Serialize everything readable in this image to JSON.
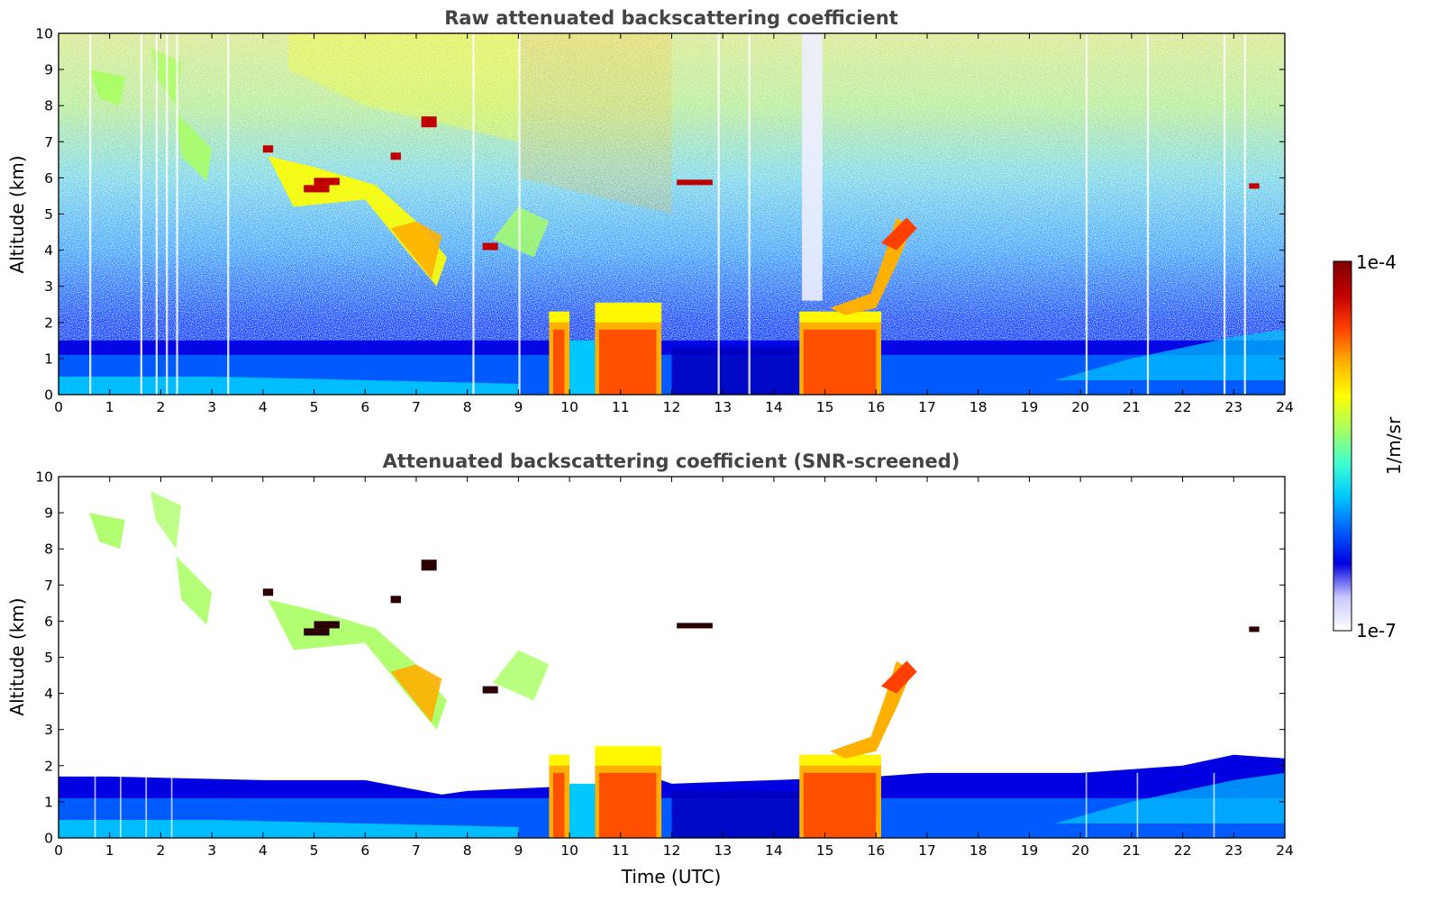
{
  "chart_data": [
    {
      "type": "heatmap",
      "title": "Raw attenuated backscattering coefficient",
      "xlabel": "",
      "ylabel": "Altitude (km)",
      "xlim": [
        0,
        24
      ],
      "ylim": [
        0,
        10
      ],
      "xticks": [
        "0",
        "1",
        "2",
        "3",
        "4",
        "5",
        "6",
        "7",
        "8",
        "9",
        "10",
        "11",
        "12",
        "13",
        "14",
        "15",
        "16",
        "17",
        "18",
        "19",
        "20",
        "21",
        "22",
        "23",
        "24"
      ],
      "yticks": [
        "0",
        "1",
        "2",
        "3",
        "4",
        "5",
        "6",
        "7",
        "8",
        "9",
        "10"
      ],
      "screened": false,
      "features": {
        "boundary_layer_top_km": 1.5,
        "thick_cloud_periods_utc": [
          [
            9.6,
            10.0
          ],
          [
            10.5,
            11.8
          ],
          [
            14.5,
            16.1
          ]
        ],
        "cirrus_base_km_range": [
          3.0,
          7.8
        ],
        "clear_column_utc": [
          14.55,
          14.95
        ]
      }
    },
    {
      "type": "heatmap",
      "title": "Attenuated backscattering coefficient (SNR-screened)",
      "xlabel": "Time (UTC)",
      "ylabel": "Altitude (km)",
      "xlim": [
        0,
        24
      ],
      "ylim": [
        0,
        10
      ],
      "xticks": [
        "0",
        "1",
        "2",
        "3",
        "4",
        "5",
        "6",
        "7",
        "8",
        "9",
        "10",
        "11",
        "12",
        "13",
        "14",
        "15",
        "16",
        "17",
        "18",
        "19",
        "20",
        "21",
        "22",
        "23",
        "24"
      ],
      "yticks": [
        "0",
        "1",
        "2",
        "3",
        "4",
        "5",
        "6",
        "7",
        "8",
        "9",
        "10"
      ],
      "screened": true,
      "features": {
        "boundary_layer_top_km": 1.7,
        "thick_cloud_periods_utc": [
          [
            9.6,
            10.0
          ],
          [
            10.5,
            11.8
          ],
          [
            14.5,
            16.1
          ]
        ],
        "cirrus_base_km_range": [
          3.0,
          7.8
        ]
      }
    }
  ],
  "colorbar": {
    "label": "1/m/sr",
    "max_label": "1e-4",
    "min_label": "1e-7",
    "scale": "log",
    "colormap": [
      "#ffffff",
      "#c8c8ff",
      "#0000e0",
      "#0060ff",
      "#00c8ff",
      "#40ffd0",
      "#a8ff60",
      "#ffff00",
      "#ffb000",
      "#ff4000",
      "#c00000",
      "#800000"
    ]
  }
}
